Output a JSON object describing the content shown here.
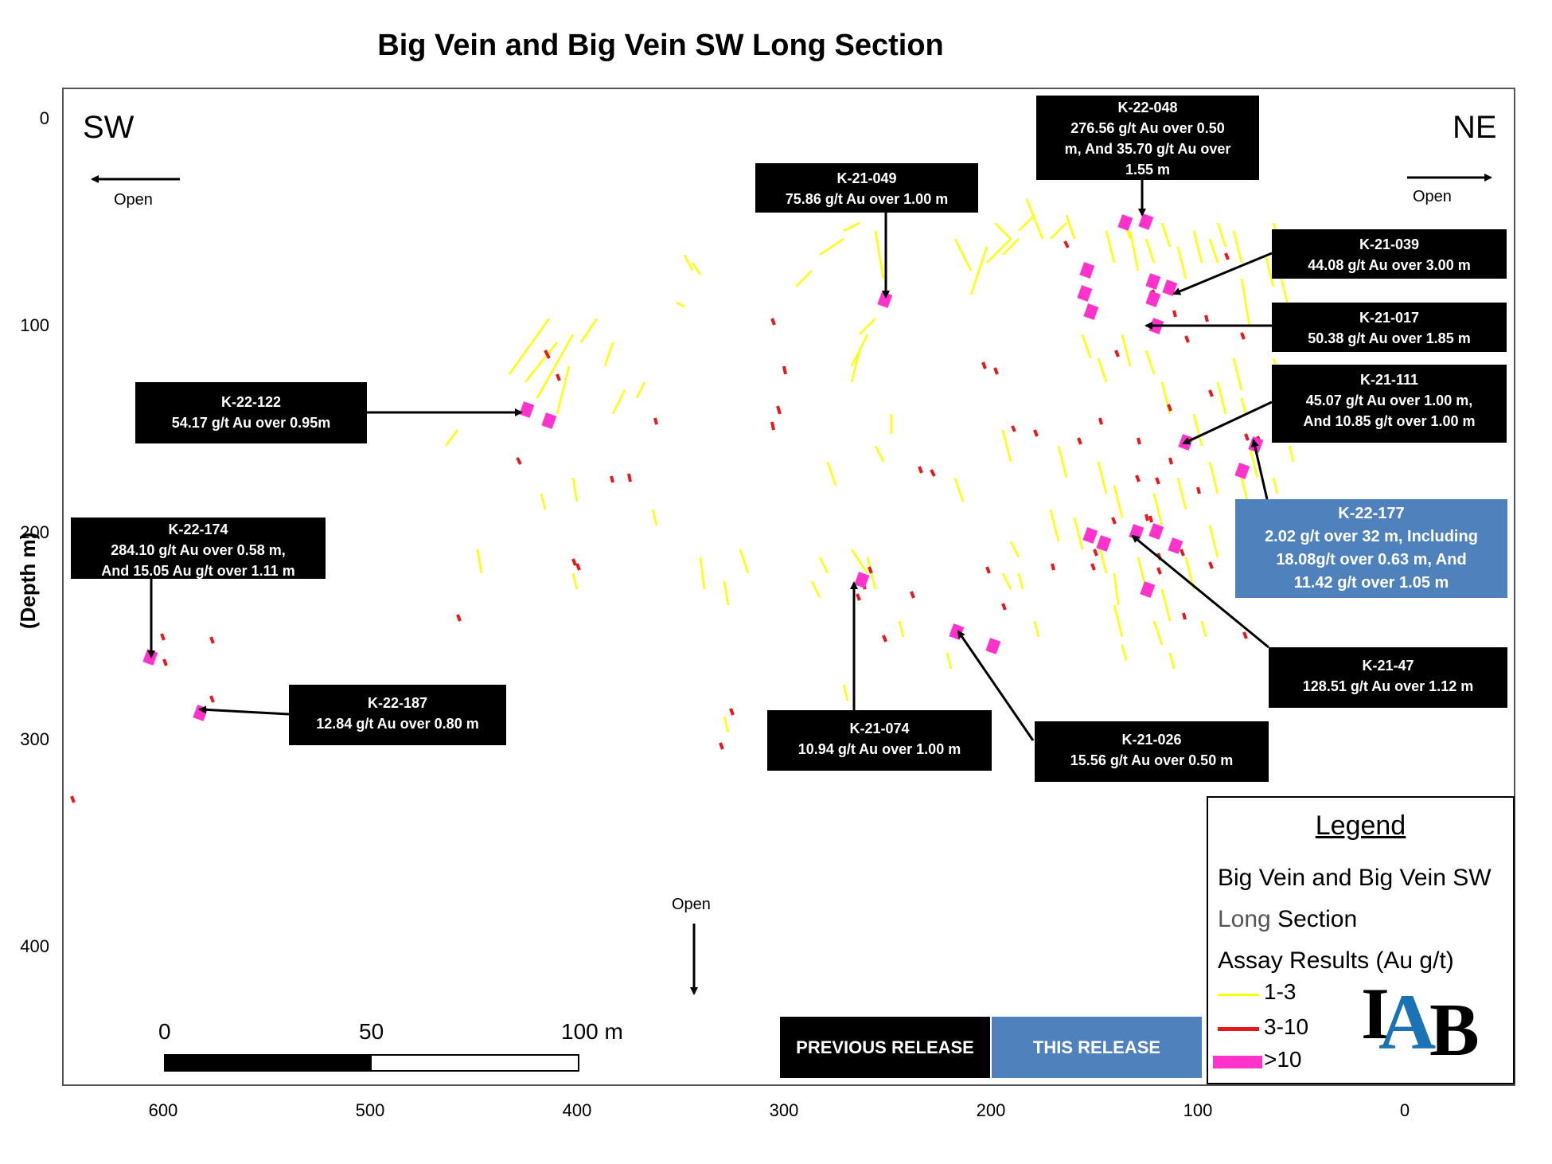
{
  "title": "Big Vein and Big Vein SW Long Section",
  "axes": {
    "y_label": "(Depth m)",
    "y_ticks": [
      "0",
      "100",
      "200",
      "300",
      "400"
    ],
    "x_ticks": [
      "600",
      "500",
      "400",
      "300",
      "200",
      "100",
      "0"
    ]
  },
  "directions": {
    "left": "SW",
    "right": "NE",
    "open": "Open"
  },
  "callouts": [
    {
      "id": "K-22-048",
      "lines": [
        "K-22-048",
        "276.56  g/t Au over  0.50",
        "m, And 35.70 g/t Au over",
        "1.55 m"
      ]
    },
    {
      "id": "K-21-049",
      "lines": [
        "K-21-049",
        "75.86 g/t  Au over  1.00 m"
      ]
    },
    {
      "id": "K-21-039",
      "lines": [
        "K-21-039",
        "44.08 g/t Au over  3.00 m"
      ]
    },
    {
      "id": "K-21-017",
      "lines": [
        "K-21-017",
        "50.38 g/t Au over  1.85 m"
      ]
    },
    {
      "id": "K-21-111",
      "lines": [
        "K-21-111",
        "45.07 g/t Au over  1.00 m,",
        "And 10.85 g/t over 1.00 m"
      ]
    },
    {
      "id": "K-22-122",
      "lines": [
        "K-22-122",
        "54.17  g/t Au over  0.95m"
      ]
    },
    {
      "id": "K-22-174",
      "lines": [
        "K-22-174",
        "284.10  g/t Au over  0.58 m,",
        "And 15.05 Au g/t over 1.11 m"
      ]
    },
    {
      "id": "K-22-177",
      "lines": [
        "K-22-177",
        "2.02 g/t over 32 m, Including",
        "18.08g/t over 0.63 m, And",
        "11.42 g/t over 1.05 m"
      ]
    },
    {
      "id": "K-22-187",
      "lines": [
        "K-22-187",
        "12.84  g/t Au over  0.80 m"
      ]
    },
    {
      "id": "K-21-074",
      "lines": [
        "K-21-074",
        "10.94  g/t Au over  1.00 m"
      ]
    },
    {
      "id": "K-21-026",
      "lines": [
        "K-21-026",
        "15.56 g/t Au over  0.50  m"
      ]
    },
    {
      "id": "K-21-47",
      "lines": [
        "K-21-47",
        "128.51  g/t Au over  1.12 m"
      ]
    }
  ],
  "releases": {
    "previous": "PREVIOUS RELEASE",
    "current": "THIS RELEASE",
    "previous_color": "#000000",
    "current_color": "#4f81bd"
  },
  "scale_bar": {
    "labels": [
      "0",
      "50",
      "100 m"
    ]
  },
  "legend": {
    "title": "Legend",
    "line1": "Big Vein and Big Vein SW",
    "line2a": "Long",
    "line2b": " Section",
    "line3": "Assay Results (Au g/t)",
    "items": [
      {
        "label": "1-3",
        "color": "#ffff00"
      },
      {
        "label": "3-10",
        "color": "#e41a1c"
      },
      {
        "label": ">10",
        "color": "#ff33cc"
      }
    ],
    "logo": "IAB"
  },
  "colors": {
    "low": "#ffff00",
    "mid": "#e41a1c",
    "high": "#ff33cc",
    "release_blue": "#4f81bd"
  }
}
